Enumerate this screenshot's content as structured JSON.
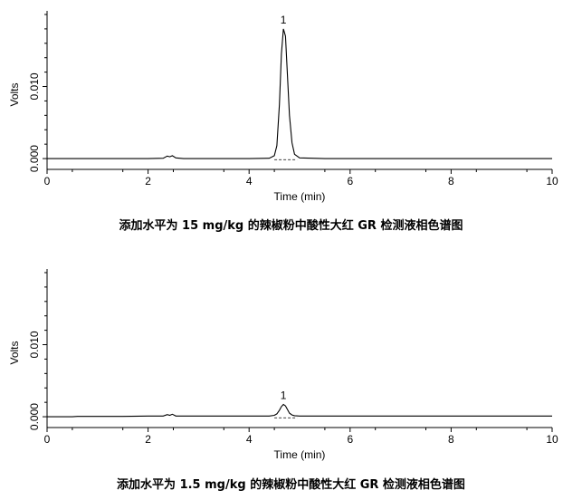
{
  "chart_data": [
    {
      "type": "line",
      "caption": "添加水平为 15 mg/kg 的辣椒粉中酸性大红 GR 检测液相色谱图",
      "xlabel": "Time (min)",
      "ylabel": "Volts",
      "xlim": [
        0,
        10
      ],
      "ylim": [
        -0.0015,
        0.0205
      ],
      "xticks": [
        0,
        2,
        4,
        6,
        8,
        10
      ],
      "yticks": [
        0.0,
        0.01
      ],
      "ytick_labels": [
        "0.000",
        "0.010"
      ],
      "series": [
        {
          "x": [
            0.0,
            0.5,
            0.6,
            1.0,
            1.5,
            2.0,
            2.3,
            2.38,
            2.43,
            2.48,
            2.55,
            2.7,
            3.0,
            3.5,
            4.0,
            4.4,
            4.5,
            4.55,
            4.6,
            4.64,
            4.68,
            4.72,
            4.76,
            4.8,
            4.85,
            4.9,
            5.0,
            5.5,
            6.0,
            6.5,
            7.0,
            7.5,
            8.0,
            8.5,
            9.0,
            9.5,
            10.0
          ],
          "values": [
            0.0,
            0.0,
            0.0,
            0.0,
            0.0,
            0.0,
            5e-05,
            0.00035,
            0.00025,
            0.0004,
            0.0001,
            0.0,
            0.0,
            0.0,
            0.0,
            5e-05,
            0.0004,
            0.0018,
            0.0075,
            0.0145,
            0.018,
            0.017,
            0.0115,
            0.006,
            0.0022,
            0.0006,
            0.0001,
            0.0,
            0.0,
            0.0,
            0.0,
            0.0,
            0.0,
            0.0,
            0.0,
            0.0,
            0.0
          ]
        }
      ],
      "peaks": [
        {
          "label": "1",
          "x": 4.68,
          "y": 0.018
        }
      ],
      "baseline": {
        "x": [
          4.5,
          4.95
        ],
        "values": [
          -0.00015,
          -0.00015
        ]
      }
    },
    {
      "type": "line",
      "caption": "添加水平为 1.5 mg/kg 的辣椒粉中酸性大红 GR 检测液相色谱图",
      "xlabel": "Time (min)",
      "ylabel": "Volts",
      "xlim": [
        0,
        10
      ],
      "ylim": [
        -0.0015,
        0.0205
      ],
      "xticks": [
        0,
        2,
        4,
        6,
        8,
        10
      ],
      "yticks": [
        0.0,
        0.01
      ],
      "ytick_labels": [
        "0.000",
        "0.010"
      ],
      "series": [
        {
          "x": [
            0.0,
            0.5,
            0.6,
            1.0,
            1.5,
            2.0,
            2.3,
            2.38,
            2.43,
            2.48,
            2.55,
            2.7,
            3.0,
            3.5,
            4.0,
            4.4,
            4.5,
            4.55,
            4.6,
            4.64,
            4.68,
            4.72,
            4.76,
            4.8,
            4.85,
            4.9,
            5.0,
            5.5,
            6.0,
            6.5,
            7.0,
            7.5,
            8.0,
            8.5,
            9.0,
            9.5,
            10.0
          ],
          "values": [
            0.0,
            0.0,
            5e-05,
            5e-05,
            5e-05,
            0.0001,
            0.0001,
            0.0003,
            0.0002,
            0.00035,
            0.0001,
            0.0001,
            0.0001,
            0.0001,
            0.0001,
            0.0001,
            0.0002,
            0.0004,
            0.0009,
            0.0014,
            0.0017,
            0.0015,
            0.001,
            0.0005,
            0.00025,
            0.00015,
            0.0001,
            0.0001,
            0.0001,
            0.0001,
            0.0001,
            0.0001,
            0.0001,
            0.0001,
            0.0001,
            0.0001,
            0.0001
          ]
        }
      ],
      "peaks": [
        {
          "label": "1",
          "x": 4.68,
          "y": 0.0017
        }
      ],
      "baseline": {
        "x": [
          4.5,
          4.95
        ],
        "values": [
          -0.00015,
          -0.00015
        ]
      }
    }
  ]
}
